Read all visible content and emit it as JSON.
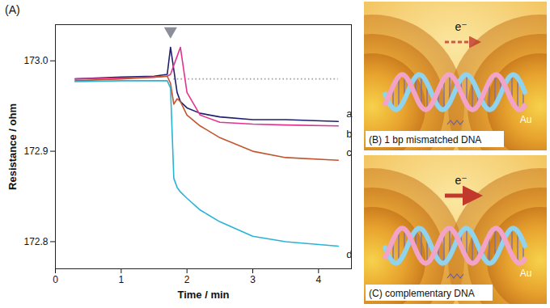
{
  "chart_data": {
    "type": "line",
    "panel": "(A)",
    "x_label": "Time / min",
    "y_label": "Resistance / ohm",
    "xlim": [
      0,
      4.5
    ],
    "xticks": [
      0,
      1,
      2,
      3,
      4
    ],
    "ylim": [
      172.77,
      173.04
    ],
    "yticks": [
      172.8,
      172.9,
      {
        "value": 173.0,
        "label": "173.0"
      }
    ],
    "x": [
      0.3,
      1.0,
      1.5,
      1.7,
      1.75,
      1.8,
      1.85,
      1.9,
      2.0,
      2.2,
      2.5,
      3.0,
      3.5,
      4.3
    ],
    "series": [
      {
        "name": "a",
        "color": "#1f1f6b",
        "values": [
          172.98,
          172.982,
          172.983,
          172.985,
          173.015,
          172.99,
          172.965,
          172.955,
          172.948,
          172.942,
          172.938,
          172.935,
          172.935,
          172.933
        ]
      },
      {
        "name": "b",
        "color": "#e2338f",
        "values": [
          172.98,
          172.981,
          172.982,
          172.983,
          172.985,
          172.995,
          173.005,
          173.015,
          172.965,
          172.94,
          172.932,
          172.93,
          172.929,
          172.928
        ]
      },
      {
        "name": "c",
        "color": "#c2562e",
        "values": [
          172.978,
          172.98,
          172.982,
          172.983,
          172.975,
          172.952,
          172.958,
          172.955,
          172.94,
          172.928,
          172.915,
          172.9,
          172.893,
          172.89
        ]
      },
      {
        "name": "d",
        "color": "#29b3d6",
        "values": [
          172.977,
          172.978,
          172.978,
          172.978,
          172.97,
          172.87,
          172.86,
          172.855,
          172.848,
          172.835,
          172.822,
          172.806,
          172.8,
          172.795
        ]
      }
    ],
    "baseline": 172.98,
    "baseline_x": [
      1.8,
      4.3
    ],
    "injection_time": 1.75
  },
  "diagrams": [
    {
      "letter": "(B)",
      "caption": "1 bp mismatched DNA",
      "electrode": "Au",
      "carrier": "e⁻",
      "arrow": "dashed"
    },
    {
      "letter": "(C)",
      "caption": "complementary DNA",
      "electrode": "Au",
      "carrier": "e⁻",
      "arrow": "solid"
    }
  ]
}
